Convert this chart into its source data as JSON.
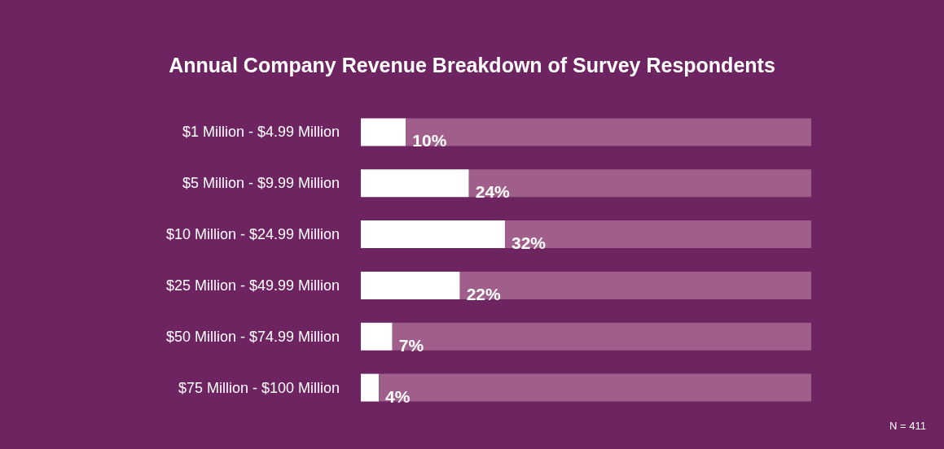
{
  "chart_data": {
    "type": "bar",
    "orientation": "horizontal",
    "stacked": true,
    "title": "Annual Company Revenue Breakdown of Survey Respondents",
    "categories": [
      "$1 Million - $4.99 Million",
      "$5 Million - $9.99 Million",
      "$10 Million - $24.99 Million",
      "$25 Million - $49.99 Million",
      "$50 Million - $74.99 Million",
      "$75 Million - $100 Million"
    ],
    "series": [
      {
        "color": "#ffffff",
        "values": [
          10,
          24,
          32,
          22,
          7,
          4
        ],
        "value_labels": [
          "10%",
          "24%",
          "32%",
          "22%",
          "7%",
          "4%"
        ]
      },
      {
        "color": "#a05f8a",
        "values": [
          90,
          76,
          68,
          78,
          93,
          96
        ]
      }
    ],
    "xlim": [
      0,
      100
    ],
    "tick_labels": "y",
    "annotations": [
      "N = 411"
    ]
  }
}
